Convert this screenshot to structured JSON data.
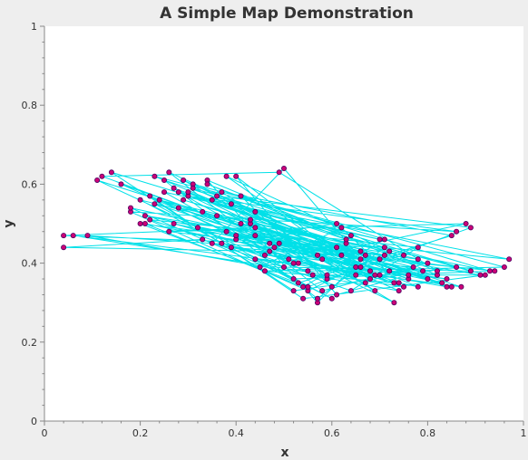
{
  "chart_data": {
    "type": "line",
    "title": "A Simple Map Demonstration",
    "xlabel": "x",
    "ylabel": "y",
    "xlim": [
      0,
      1
    ],
    "ylim": [
      0,
      1
    ],
    "x_ticks": [
      "0",
      "0.2",
      "0.4",
      "0.6",
      "0.8",
      "1"
    ],
    "y_ticks": [
      "0",
      "0.2",
      "0.4",
      "0.6",
      "0.8",
      "1"
    ],
    "grid": false,
    "legend": "none",
    "line_color": "#00e0e8",
    "marker_color": "#cc0077",
    "marker_edge_color": "#4a0060",
    "background_color": "#ffffff",
    "series": [
      {
        "points": [
          [
            0.53,
            0.4
          ],
          [
            0.69,
            0.37
          ],
          [
            0.5,
            0.64
          ],
          [
            0.35,
            0.45
          ],
          [
            0.78,
            0.34
          ],
          [
            0.23,
            0.62
          ],
          [
            0.61,
            0.5
          ],
          [
            0.44,
            0.47
          ],
          [
            0.97,
            0.41
          ],
          [
            0.3,
            0.57
          ],
          [
            0.86,
            0.48
          ],
          [
            0.18,
            0.53
          ],
          [
            0.55,
            0.33
          ],
          [
            0.72,
            0.43
          ],
          [
            0.38,
            0.62
          ],
          [
            0.65,
            0.39
          ],
          [
            0.28,
            0.54
          ],
          [
            0.93,
            0.38
          ],
          [
            0.41,
            0.57
          ],
          [
            0.59,
            0.36
          ],
          [
            0.75,
            0.42
          ],
          [
            0.21,
            0.52
          ],
          [
            0.49,
            0.45
          ],
          [
            0.82,
            0.37
          ],
          [
            0.34,
            0.61
          ],
          [
            0.57,
            0.3
          ],
          [
            0.67,
            0.42
          ],
          [
            0.26,
            0.48
          ],
          [
            0.88,
            0.5
          ],
          [
            0.45,
            0.39
          ],
          [
            0.62,
            0.49
          ],
          [
            0.74,
            0.35
          ],
          [
            0.16,
            0.6
          ],
          [
            0.51,
            0.41
          ],
          [
            0.84,
            0.34
          ],
          [
            0.39,
            0.55
          ],
          [
            0.7,
            0.46
          ],
          [
            0.25,
            0.58
          ],
          [
            0.6,
            0.34
          ],
          [
            0.47,
            0.43
          ],
          [
            0.04,
            0.44
          ],
          [
            0.33,
            0.46
          ],
          [
            0.64,
            0.33
          ],
          [
            0.78,
            0.44
          ],
          [
            0.22,
            0.51
          ],
          [
            0.55,
            0.38
          ],
          [
            0.96,
            0.39
          ],
          [
            0.31,
            0.6
          ],
          [
            0.68,
            0.38
          ],
          [
            0.43,
            0.5
          ],
          [
            0.8,
            0.36
          ],
          [
            0.27,
            0.59
          ],
          [
            0.58,
            0.41
          ],
          [
            0.73,
            0.3
          ],
          [
            0.36,
            0.52
          ],
          [
            0.63,
            0.45
          ],
          [
            0.14,
            0.63
          ],
          [
            0.52,
            0.33
          ],
          [
            0.86,
            0.39
          ],
          [
            0.4,
            0.46
          ],
          [
            0.71,
            0.42
          ],
          [
            0.24,
            0.56
          ],
          [
            0.56,
            0.37
          ],
          [
            0.91,
            0.37
          ],
          [
            0.32,
            0.49
          ],
          [
            0.66,
            0.41
          ],
          [
            0.46,
            0.42
          ],
          [
            0.77,
            0.39
          ],
          [
            0.2,
            0.56
          ],
          [
            0.53,
            0.35
          ],
          [
            0.85,
            0.47
          ],
          [
            0.37,
            0.58
          ],
          [
            0.69,
            0.33
          ],
          [
            0.29,
            0.61
          ],
          [
            0.61,
            0.44
          ],
          [
            0.41,
            0.5
          ],
          [
            0.76,
            0.36
          ],
          [
            0.11,
            0.61
          ],
          [
            0.5,
            0.39
          ],
          [
            0.89,
            0.38
          ],
          [
            0.35,
            0.56
          ],
          [
            0.64,
            0.47
          ],
          [
            0.44,
            0.53
          ],
          [
            0.72,
            0.38
          ],
          [
            0.26,
            0.63
          ],
          [
            0.58,
            0.33
          ],
          [
            0.8,
            0.4
          ],
          [
            0.38,
            0.48
          ],
          [
            0.67,
            0.35
          ],
          [
            0.22,
            0.57
          ],
          [
            0.54,
            0.31
          ],
          [
            0.92,
            0.37
          ],
          [
            0.31,
            0.59
          ],
          [
            0.62,
            0.42
          ],
          [
            0.47,
            0.45
          ],
          [
            0.75,
            0.34
          ],
          [
            0.06,
            0.47
          ],
          [
            0.52,
            0.4
          ],
          [
            0.84,
            0.36
          ],
          [
            0.39,
            0.44
          ],
          [
            0.7,
            0.41
          ],
          [
            0.28,
            0.58
          ],
          [
            0.59,
            0.37
          ],
          [
            0.43,
            0.51
          ],
          [
            0.78,
            0.41
          ],
          [
            0.2,
            0.5
          ],
          [
            0.55,
            0.34
          ],
          [
            0.89,
            0.49
          ],
          [
            0.36,
            0.57
          ],
          [
            0.66,
            0.39
          ],
          [
            0.46,
            0.38
          ],
          [
            0.73,
            0.35
          ],
          [
            0.12,
            0.62
          ],
          [
            0.49,
            0.63
          ],
          [
            0.82,
            0.38
          ],
          [
            0.34,
            0.6
          ],
          [
            0.63,
            0.46
          ],
          [
            0.25,
            0.61
          ],
          [
            0.57,
            0.31
          ],
          [
            0.71,
            0.44
          ],
          [
            0.04,
            0.47
          ],
          [
            0.44,
            0.49
          ],
          [
            0.85,
            0.34
          ],
          [
            0.3,
            0.58
          ],
          [
            0.68,
            0.36
          ],
          [
            0.4,
            0.62
          ],
          [
            0.61,
            0.32
          ],
          [
            0.79,
            0.38
          ],
          [
            0.18,
            0.54
          ],
          [
            0.52,
            0.36
          ],
          [
            0.94,
            0.38
          ],
          [
            0.37,
            0.45
          ],
          [
            0.65,
            0.37
          ],
          [
            0.27,
            0.5
          ],
          [
            0.57,
            0.42
          ],
          [
            0.74,
            0.33
          ],
          [
            0.09,
            0.47
          ],
          [
            0.48,
            0.44
          ],
          [
            0.83,
            0.35
          ],
          [
            0.33,
            0.53
          ],
          [
            0.7,
            0.37
          ],
          [
            0.23,
            0.55
          ],
          [
            0.6,
            0.31
          ],
          [
            0.44,
            0.41
          ],
          [
            0.87,
            0.34
          ],
          [
            0.29,
            0.56
          ],
          [
            0.66,
            0.43
          ],
          [
            0.4,
            0.47
          ],
          [
            0.76,
            0.37
          ],
          [
            0.21,
            0.5
          ],
          [
            0.54,
            0.34
          ],
          [
            0.71,
            0.46
          ]
        ]
      }
    ]
  }
}
